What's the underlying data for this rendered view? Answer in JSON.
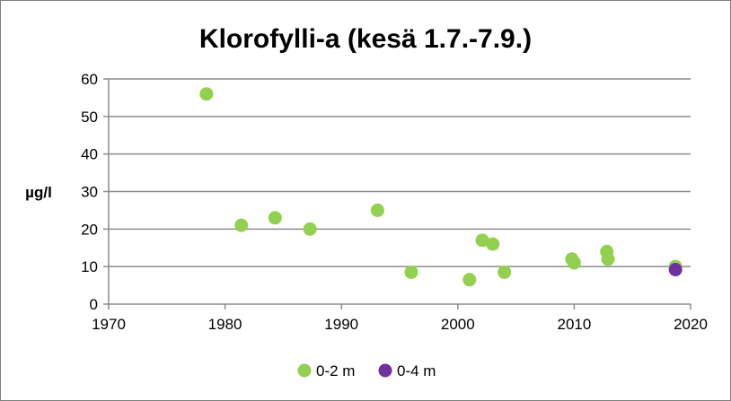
{
  "chart_data": {
    "type": "scatter",
    "title": "Klorofylli-a (kesä 1.7.-7.9.)",
    "ylabel": "µg/l",
    "xlabel": "",
    "xlim": [
      1970,
      2020
    ],
    "ylim": [
      0,
      60
    ],
    "x_ticks": [
      1970,
      1980,
      1990,
      2000,
      2010,
      2020
    ],
    "y_ticks": [
      0,
      10,
      20,
      30,
      40,
      50,
      60
    ],
    "grid": "horizontal",
    "legend_position": "bottom",
    "series": [
      {
        "name": "0-2 m",
        "color": "#92d050",
        "points": [
          {
            "x": 1978.4,
            "y": 56
          },
          {
            "x": 1981.4,
            "y": 21
          },
          {
            "x": 1984.3,
            "y": 23
          },
          {
            "x": 1987.3,
            "y": 20
          },
          {
            "x": 1993.1,
            "y": 25
          },
          {
            "x": 1996.0,
            "y": 8.5
          },
          {
            "x": 2001.0,
            "y": 6.5
          },
          {
            "x": 2002.1,
            "y": 17
          },
          {
            "x": 2003.0,
            "y": 16
          },
          {
            "x": 2004.0,
            "y": 8.5
          },
          {
            "x": 2009.8,
            "y": 12
          },
          {
            "x": 2010.0,
            "y": 11
          },
          {
            "x": 2012.8,
            "y": 14
          },
          {
            "x": 2012.9,
            "y": 12
          },
          {
            "x": 2018.7,
            "y": 10
          }
        ]
      },
      {
        "name": "0-4 m",
        "color": "#7030a0",
        "points": [
          {
            "x": 2018.7,
            "y": 9.2
          }
        ]
      }
    ]
  }
}
